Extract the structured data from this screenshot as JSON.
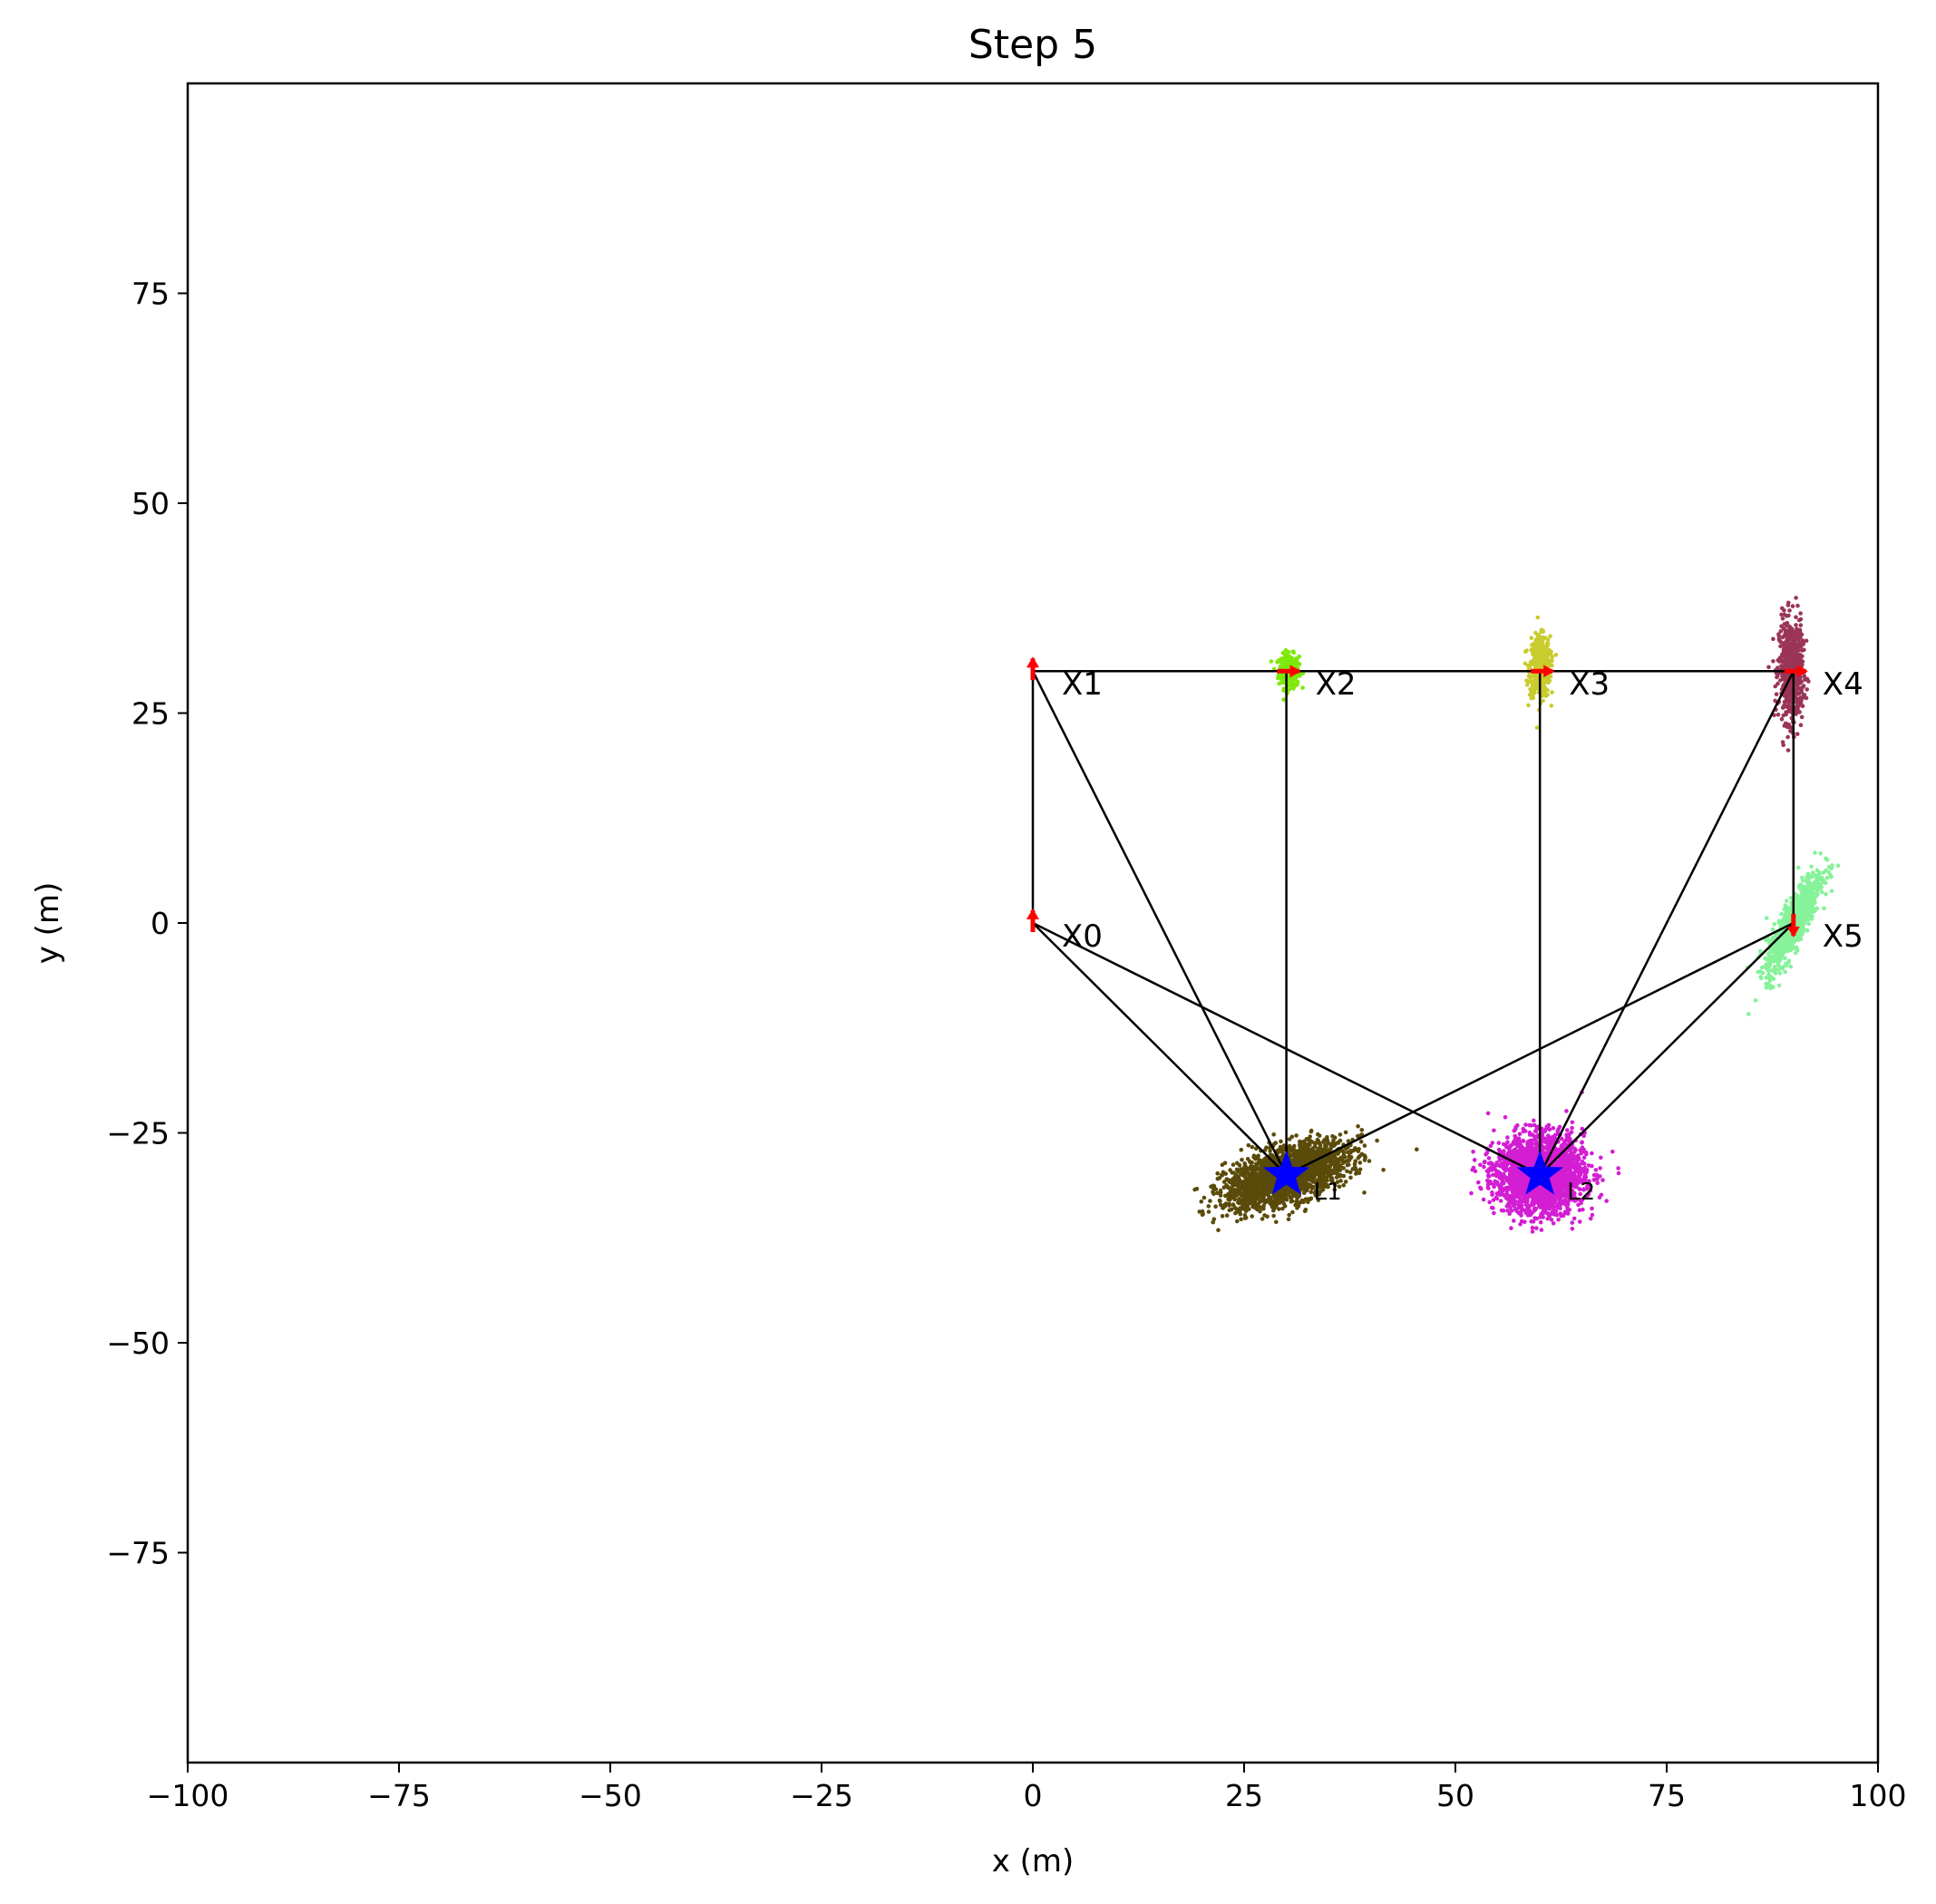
{
  "chart_data": {
    "type": "scatter",
    "title": "Step 5",
    "xlabel": "x (m)",
    "ylabel": "y (m)",
    "xlim": [
      -100,
      100
    ],
    "ylim": [
      -100,
      100
    ],
    "xticks": [
      -100,
      -75,
      -50,
      -25,
      0,
      25,
      50,
      75,
      100
    ],
    "xtick_labels": [
      "−100",
      "−75",
      "−50",
      "−25",
      "0",
      "25",
      "50",
      "75",
      "100"
    ],
    "yticks": [
      -75,
      -50,
      -25,
      0,
      25,
      50,
      75
    ],
    "ytick_labels": [
      "−75",
      "−50",
      "−25",
      "0",
      "25",
      "50",
      "75"
    ],
    "grid": false,
    "poses": [
      {
        "label": "X0",
        "x": 0,
        "y": 0,
        "heading_deg": 90
      },
      {
        "label": "X1",
        "x": 0,
        "y": 30,
        "heading_deg": 90
      },
      {
        "label": "X2",
        "x": 30,
        "y": 30,
        "heading_deg": 0
      },
      {
        "label": "X3",
        "x": 60,
        "y": 30,
        "heading_deg": 0
      },
      {
        "label": "X4",
        "x": 90,
        "y": 30,
        "heading_deg": 0
      },
      {
        "label": "X5",
        "x": 90,
        "y": 0,
        "heading_deg": -90
      }
    ],
    "landmarks": [
      {
        "label": "L1",
        "x": 30,
        "y": -30
      },
      {
        "label": "L2",
        "x": 60,
        "y": -30
      }
    ],
    "edges": [
      [
        "X0",
        "X1"
      ],
      [
        "X1",
        "X2"
      ],
      [
        "X2",
        "X3"
      ],
      [
        "X3",
        "X4"
      ],
      [
        "X4",
        "X5"
      ],
      [
        "X0",
        "L1"
      ],
      [
        "X0",
        "L2"
      ],
      [
        "X1",
        "L1"
      ],
      [
        "X2",
        "L1"
      ],
      [
        "X3",
        "L2"
      ],
      [
        "X4",
        "L2"
      ],
      [
        "X5",
        "L1"
      ],
      [
        "X5",
        "L2"
      ]
    ],
    "particle_clouds": [
      {
        "name": "X2",
        "cx": 30.3,
        "cy": 30,
        "sx": 0.6,
        "sy": 1.0,
        "rho": 0.0,
        "n": 300,
        "color": "#7fe80c"
      },
      {
        "name": "X3",
        "cx": 60,
        "cy": 30.5,
        "sx": 0.6,
        "sy": 1.8,
        "rho": 0.0,
        "n": 500,
        "color": "#c9cc2e"
      },
      {
        "name": "X4",
        "cx": 89.7,
        "cy": 30,
        "sx": 0.7,
        "sy": 3.0,
        "rho": 0.0,
        "n": 700,
        "color": "#9a3558"
      },
      {
        "name": "X5",
        "cx": 90,
        "cy": 0,
        "sx": 1.6,
        "sy": 3.0,
        "rho": 0.85,
        "n": 900,
        "color": "#86f29a"
      },
      {
        "name": "L1",
        "cx": 30,
        "cy": -30,
        "sx": 3.6,
        "sy": 1.9,
        "rho": 0.55,
        "n": 2200,
        "color": "#5b4b0b"
      },
      {
        "name": "L2",
        "cx": 60,
        "cy": -30,
        "sx": 2.6,
        "sy": 2.3,
        "rho": 0.0,
        "n": 2200,
        "color": "#d31ed3"
      }
    ],
    "colors": {
      "pose_marker": "#ff0000",
      "landmark_marker": "#0000ff",
      "edge": "#000000"
    }
  }
}
